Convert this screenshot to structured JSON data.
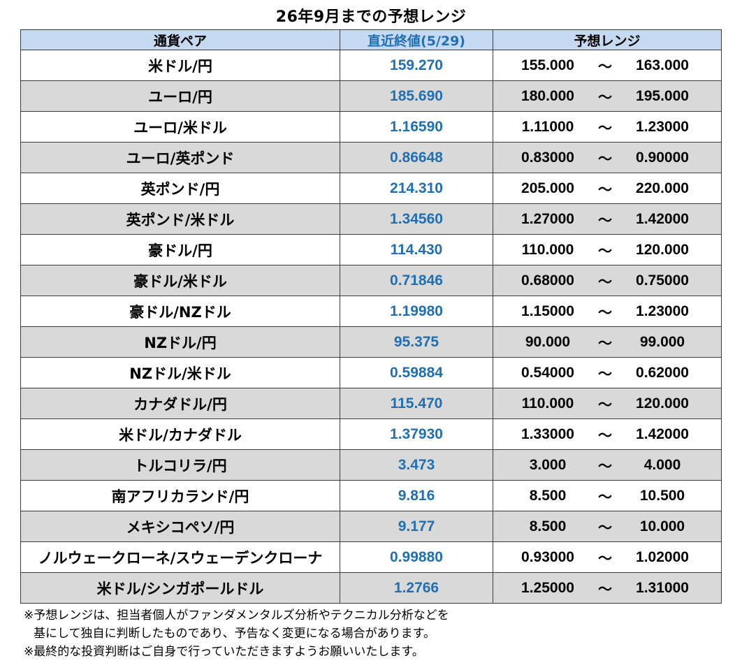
{
  "title": "26年9月までの予想レンジ",
  "header": {
    "pair": "通貨ペア",
    "last": "直近終値(5/29)",
    "range": "予想レンジ"
  },
  "rows": [
    {
      "pair": "米ドル/円",
      "last": "159.270",
      "low": "155.000",
      "tilde": "～",
      "high": "163.000"
    },
    {
      "pair": "ユーロ/円",
      "last": "185.690",
      "low": "180.000",
      "tilde": "～",
      "high": "195.000"
    },
    {
      "pair": "ユーロ/米ドル",
      "last": "1.16590",
      "low": "1.11000",
      "tilde": "～",
      "high": "1.23000"
    },
    {
      "pair": "ユーロ/英ポンド",
      "last": "0.86648",
      "low": "0.83000",
      "tilde": "～",
      "high": "0.90000"
    },
    {
      "pair": "英ポンド/円",
      "last": "214.310",
      "low": "205.000",
      "tilde": "～",
      "high": "220.000"
    },
    {
      "pair": "英ポンド/米ドル",
      "last": "1.34560",
      "low": "1.27000",
      "tilde": "～",
      "high": "1.42000"
    },
    {
      "pair": "豪ドル/円",
      "last": "114.430",
      "low": "110.000",
      "tilde": "～",
      "high": "120.000"
    },
    {
      "pair": "豪ドル/米ドル",
      "last": "0.71846",
      "low": "0.68000",
      "tilde": "～",
      "high": "0.75000"
    },
    {
      "pair": "豪ドル/NZドル",
      "last": "1.19980",
      "low": "1.15000",
      "tilde": "～",
      "high": "1.23000"
    },
    {
      "pair": "NZドル/円",
      "last": "95.375",
      "low": "90.000",
      "tilde": "～",
      "high": "99.000"
    },
    {
      "pair": "NZドル/米ドル",
      "last": "0.59884",
      "low": "0.54000",
      "tilde": "～",
      "high": "0.62000"
    },
    {
      "pair": "カナダドル/円",
      "last": "115.470",
      "low": "110.000",
      "tilde": "～",
      "high": "120.000"
    },
    {
      "pair": "米ドル/カナダドル",
      "last": "1.37930",
      "low": "1.33000",
      "tilde": "～",
      "high": "1.42000"
    },
    {
      "pair": "トルコリラ/円",
      "last": "3.473",
      "low": "3.000",
      "tilde": "～",
      "high": "4.000"
    },
    {
      "pair": "南アフリカランド/円",
      "last": "9.816",
      "low": "8.500",
      "tilde": "～",
      "high": "10.500"
    },
    {
      "pair": "メキシコペソ/円",
      "last": "9.177",
      "low": "8.500",
      "tilde": "～",
      "high": "10.000"
    },
    {
      "pair": "ノルウェークローネ/スウェーデンクローナ",
      "last": "0.99880",
      "low": "0.93000",
      "tilde": "～",
      "high": "1.02000"
    },
    {
      "pair": "米ドル/シンガポールドル",
      "last": "1.2766",
      "low": "1.25000",
      "tilde": "～",
      "high": "1.31000"
    }
  ],
  "notes": [
    "※予想レンジは、担当者個人がファンダメンタルズ分析やテクニカル分析などを",
    "基にして独自に判断したものであり、予告なく変更になる場合があります。",
    "※最終的な投資判断はご自身で行っていただきますようお願いいたします。"
  ],
  "colors": {
    "header_bg": "#c5d9f1",
    "shaded_row_bg": "#d9d9d9",
    "last_price_text": "#1f6fb5"
  }
}
